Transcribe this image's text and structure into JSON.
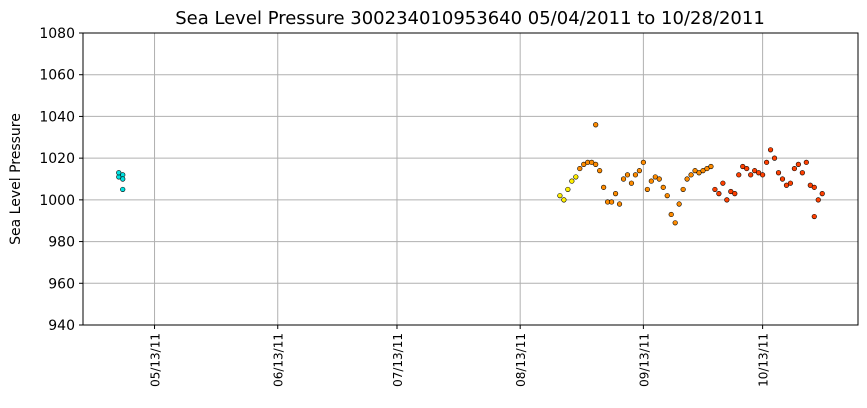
{
  "chart_data": {
    "type": "scatter",
    "title": "Sea Level Pressure 300234010953640  05/04/2011 to 10/28/2011",
    "ylabel": "Sea Level Pressure",
    "grid": true,
    "xlim": [
      "2011-04-25",
      "2011-11-06"
    ],
    "xticks": [
      {
        "value": "2011-05-13",
        "label": "05/13/11"
      },
      {
        "value": "2011-06-13",
        "label": "06/13/11"
      },
      {
        "value": "2011-07-13",
        "label": "07/13/11"
      },
      {
        "value": "2011-08-13",
        "label": "08/13/11"
      },
      {
        "value": "2011-09-13",
        "label": "09/13/11"
      },
      {
        "value": "2011-10-13",
        "label": "10/13/11"
      }
    ],
    "ylim": [
      940,
      1080
    ],
    "yticks": [
      940,
      960,
      980,
      1000,
      1020,
      1040,
      1060,
      1080
    ],
    "series": [
      {
        "color": "#00e0e0",
        "x": [
          "2011-05-04",
          "2011-05-04",
          "2011-05-05",
          "2011-05-05",
          "2011-05-05"
        ],
        "values": [
          1011,
          1013,
          1012,
          1010,
          1005
        ]
      },
      {
        "color": "#ffee00",
        "x": [
          "2011-08-23",
          "2011-08-24",
          "2011-08-25",
          "2011-08-26",
          "2011-08-27"
        ],
        "values": [
          1002,
          1000,
          1005,
          1009,
          1011
        ]
      },
      {
        "color": "#ff8c00",
        "x": [
          "2011-08-28",
          "2011-08-29",
          "2011-08-30",
          "2011-08-31",
          "2011-09-01",
          "2011-09-01",
          "2011-09-02",
          "2011-09-03",
          "2011-09-04",
          "2011-09-05",
          "2011-09-06",
          "2011-09-07",
          "2011-09-08",
          "2011-09-09",
          "2011-09-10",
          "2011-09-11",
          "2011-09-12",
          "2011-09-13",
          "2011-09-14",
          "2011-09-15",
          "2011-09-16",
          "2011-09-17",
          "2011-09-18",
          "2011-09-19",
          "2011-09-20",
          "2011-09-21",
          "2011-09-22",
          "2011-09-23",
          "2011-09-24",
          "2011-09-25",
          "2011-09-26",
          "2011-09-27",
          "2011-09-28",
          "2011-09-29",
          "2011-09-30"
        ],
        "values": [
          1015,
          1017,
          1018,
          1018,
          1017,
          1036,
          1014,
          1006,
          999,
          999,
          1003,
          998,
          1010,
          1012,
          1008,
          1012,
          1014,
          1018,
          1005,
          1009,
          1011,
          1010,
          1006,
          1002,
          993,
          989,
          998,
          1005,
          1010,
          1012,
          1014,
          1013,
          1014,
          1015,
          1016
        ]
      },
      {
        "color": "#ff4000",
        "x": [
          "2011-10-01",
          "2011-10-02",
          "2011-10-03",
          "2011-10-04",
          "2011-10-05",
          "2011-10-06",
          "2011-10-07",
          "2011-10-08",
          "2011-10-09",
          "2011-10-10",
          "2011-10-11",
          "2011-10-12",
          "2011-10-13",
          "2011-10-14",
          "2011-10-15",
          "2011-10-16",
          "2011-10-17",
          "2011-10-18",
          "2011-10-19",
          "2011-10-20",
          "2011-10-21",
          "2011-10-22",
          "2011-10-23",
          "2011-10-24",
          "2011-10-25",
          "2011-10-26",
          "2011-10-26",
          "2011-10-27",
          "2011-10-28"
        ],
        "values": [
          1005,
          1003,
          1008,
          1000,
          1004,
          1003,
          1012,
          1016,
          1015,
          1012,
          1014,
          1013,
          1012,
          1018,
          1024,
          1020,
          1013,
          1010,
          1007,
          1008,
          1015,
          1017,
          1013,
          1018,
          1007,
          1006,
          992,
          1000,
          1003
        ]
      }
    ]
  }
}
